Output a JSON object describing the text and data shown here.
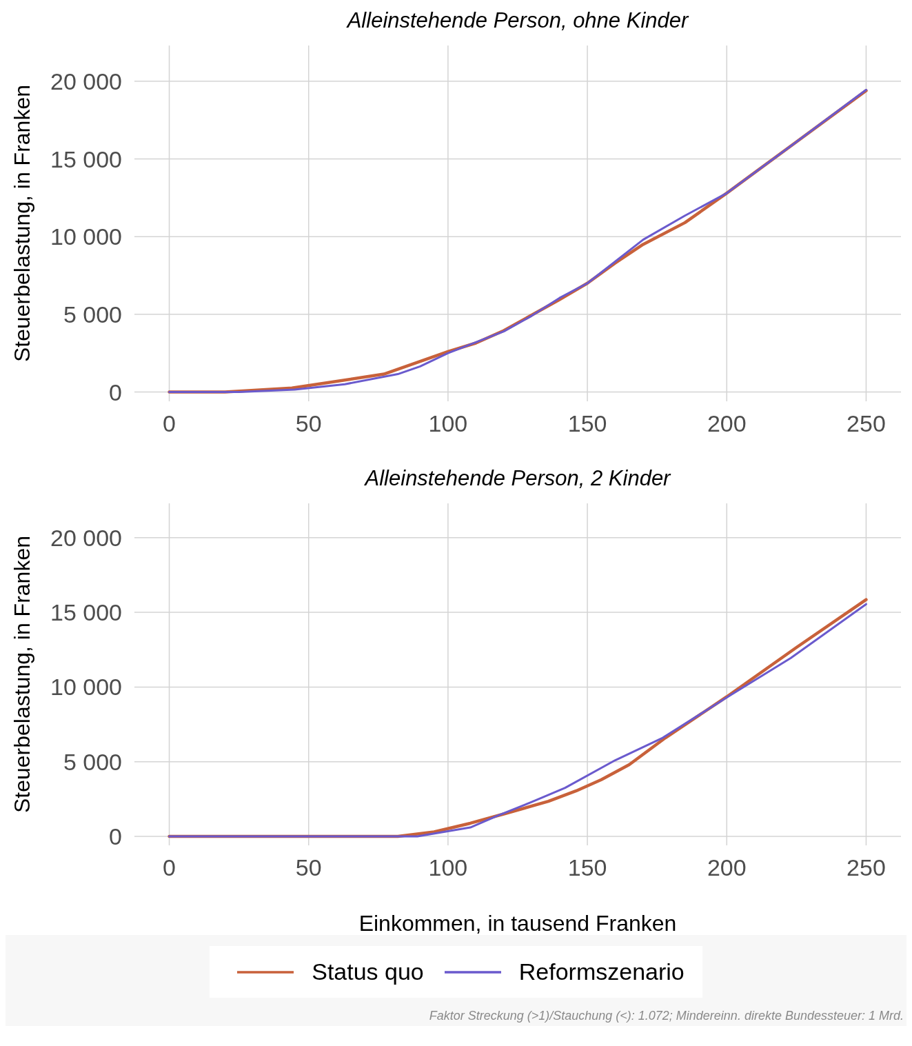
{
  "chart_data": [
    {
      "type": "line",
      "title": "Alleinstehende Person, ohne Kinder",
      "ylabel": "Steuerbelastung, in Franken",
      "xlim": [
        -12.5,
        262.5
      ],
      "xticks": [
        0,
        50,
        100,
        150,
        200,
        250
      ],
      "ylim": [
        -600,
        22300
      ],
      "yticks": [
        0,
        {
          "value": 5000,
          "label": "5 000"
        },
        {
          "value": 10000,
          "label": "10 000"
        },
        {
          "value": 15000,
          "label": "15 000"
        },
        {
          "value": 20000,
          "label": "20 000"
        }
      ],
      "grid": true,
      "line_style": "solid",
      "marker": "none",
      "series": [
        {
          "color": "#c8613a",
          "x": [
            0,
            20,
            44,
            77,
            100,
            110,
            120,
            130,
            140,
            150,
            160,
            170,
            185,
            200,
            225,
            250
          ],
          "values": [
            0,
            0,
            250,
            1150,
            2600,
            3150,
            3950,
            4950,
            5950,
            7000,
            8300,
            9500,
            10900,
            12800,
            16100,
            19400
          ]
        },
        {
          "color": "#6a5acd",
          "x": [
            0,
            25,
            45,
            63,
            82,
            90,
            100,
            110,
            120,
            130,
            140,
            150,
            160,
            170,
            185,
            200,
            225,
            250
          ],
          "values": [
            0,
            0,
            150,
            500,
            1150,
            1650,
            2500,
            3200,
            3900,
            4900,
            6050,
            7000,
            8400,
            9800,
            11350,
            12800,
            16100,
            19450
          ]
        }
      ]
    },
    {
      "type": "line",
      "title": "Alleinstehende Person, 2 Kinder",
      "xlabel": "Einkommen, in tausend Franken",
      "ylabel": "Steuerbelastung, in Franken",
      "xlim": [
        -12.5,
        262.5
      ],
      "xticks": [
        0,
        50,
        100,
        150,
        200,
        250
      ],
      "ylim": [
        -600,
        22300
      ],
      "yticks": [
        0,
        {
          "value": 5000,
          "label": "5 000"
        },
        {
          "value": 10000,
          "label": "10 000"
        },
        {
          "value": 15000,
          "label": "15 000"
        },
        {
          "value": 20000,
          "label": "20 000"
        }
      ],
      "grid": true,
      "legend": "bottom",
      "line_style": "solid",
      "marker": "none",
      "annotations": [
        "Faktor Streckung (>1)/Stauchung (<): 1.072; Mindereinn. direkte Bundessteuer: 1 Mrd."
      ],
      "series": [
        {
          "name": "Status quo",
          "color": "#c8613a",
          "x": [
            0,
            82,
            95,
            108,
            120,
            136,
            146,
            155,
            165,
            178,
            200,
            225,
            250
          ],
          "values": [
            0,
            0,
            300,
            880,
            1500,
            2350,
            3050,
            3800,
            4800,
            6600,
            9350,
            12650,
            15850
          ]
        },
        {
          "name": "Reformszenario",
          "color": "#6a5acd",
          "x": [
            0,
            89,
            108,
            118,
            130,
            142,
            160,
            177,
            200,
            223,
            250
          ],
          "values": [
            0,
            0,
            600,
            1400,
            2300,
            3250,
            5100,
            6600,
            9300,
            11950,
            15550
          ]
        }
      ]
    }
  ]
}
